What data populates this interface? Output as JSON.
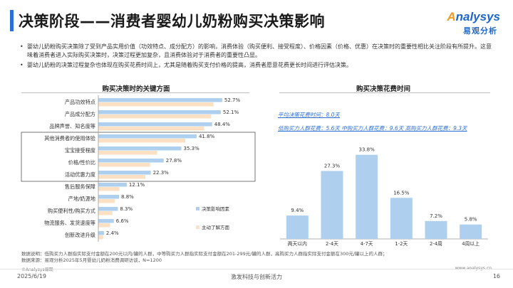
{
  "header": {
    "title": "决策阶段——消费者婴幼儿奶粉购买决策影响",
    "logo_text": "nalysys",
    "logo_initial": "A",
    "logo_cn": "易观分析"
  },
  "bullets": [
    "婴幼儿奶粉购买决策除了受到产品实用价值（功效特点、成分配方）的影响，消费体验（购买便利、接受程度）、价格因素（价格、优惠）在决策时的重要性相比关注阶段有所提升。这意味着消费者进入实际购买决策时，决策过程更加复杂，且消费体验对于消费者的重要性凸显。",
    "婴幼儿奶粉的决策过程复杂也体现在购买花费时间上，尤其是随着购买支付价格的提高，消费者愿意花费更长时间进行评估决策。"
  ],
  "chart_data": [
    {
      "type": "bar",
      "orientation": "horizontal",
      "title": "购买决策时的关键方面",
      "categories": [
        "产品功效特点",
        "产品成分配方",
        "品牌声誉、知名度等",
        "其他消费者的使用体验",
        "宝宝接受程度",
        "价格/性价比",
        "活动优惠力度",
        "售后服务保障",
        "产地/奶源地",
        "购买便利性/购买方式",
        "物流服务、发货速度等",
        "创新改进升级"
      ],
      "series": [
        {
          "name": "决策影响因素",
          "values": [
            52.7,
            52.1,
            48.4,
            41.8,
            35.3,
            27.8,
            22.3,
            12.1,
            8.8,
            8.3,
            6.6,
            2.4
          ]
        },
        {
          "name": "主动了解方面",
          "values": [
            49,
            48,
            45,
            37,
            25,
            22,
            20,
            9,
            7,
            6,
            5,
            2
          ]
        }
      ],
      "labels": [
        "52.7%",
        "52.1%",
        "48.4%",
        "41.8%",
        "35.3%",
        "27.8%",
        "22.3%",
        "12.1%",
        "8.8%",
        "8.3%",
        "6.6%",
        "2.4%"
      ],
      "highlighted_rows": [
        3,
        4,
        5,
        6
      ],
      "xlim": [
        0,
        60
      ],
      "colors": {
        "primary": "#aed0ee",
        "secondary": "#fbe0c3",
        "highlight_box": "#555555"
      }
    },
    {
      "type": "bar",
      "title": "购买决策花费时间",
      "categories": [
        "两天以内",
        "2-4天",
        "4-7天",
        "1-2天",
        "2-4周",
        "4周以上"
      ],
      "values": [
        9.4,
        27.3,
        33.8,
        16.5,
        7.2,
        5.8
      ],
      "labels": [
        "9.4%",
        "27.3%",
        "33.8%",
        "16.5%",
        "7.2%",
        "5.8%"
      ],
      "ylim": [
        0,
        40
      ],
      "color": "#aed0ee",
      "annotations": {
        "avg": "平均决策花费时间：8.0天",
        "tiers": "低购买力人群花费：5.6天    中购买力人群花费：9.6天    高购买力人群花费：9.3天"
      }
    }
  ],
  "source": {
    "line1": "数据说明：低购买力人群指实际支付金额在200元以内/罐的人群，中等购买力人群指实际支付金额在201-299元/罐的人群，高购买力人群指实际支付金额在300元/罐以上的人群；",
    "line2": "数据来源：易观分析2025年5月婴幼儿奶粉消费调研访谈，N=1200"
  },
  "footer": {
    "copyright": "©Analysys易观",
    "url": "www.analysys.cn",
    "date": "2025/6/19",
    "slogan": "激发科技与创新活力",
    "page": "16"
  }
}
